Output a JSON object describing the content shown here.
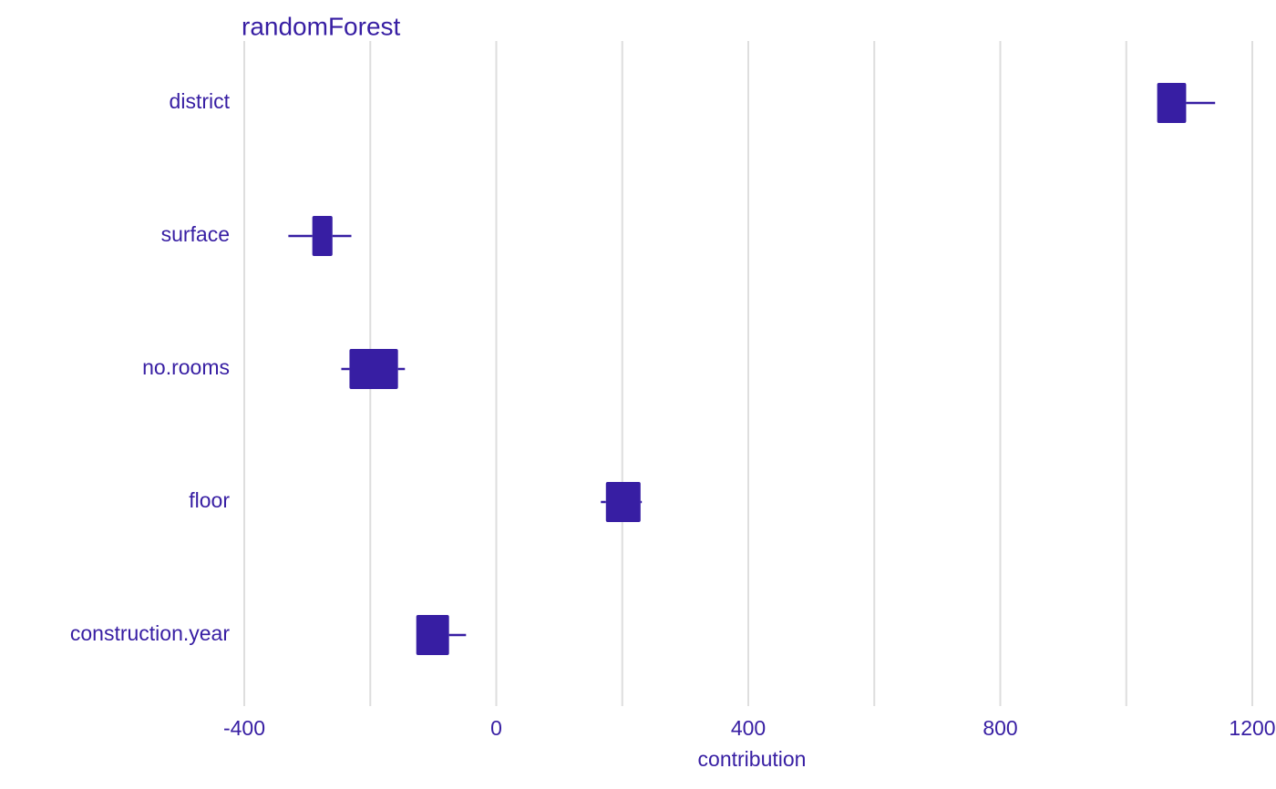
{
  "chart_data": {
    "type": "boxplot",
    "title": "randomForest",
    "x_label": "contribution",
    "categories": [
      "district",
      "surface",
      "no.rooms",
      "floor",
      "construction.year"
    ],
    "min": [
      1049,
      -330,
      -246,
      166,
      -127
    ],
    "q1": [
      1049,
      -292,
      -233,
      174,
      -127
    ],
    "q3": [
      1095,
      -260,
      -156,
      229,
      -75
    ],
    "max": [
      1141,
      -230,
      -145,
      231,
      -48
    ],
    "color": "#371ea3",
    "xlim": [
      -400,
      1200
    ],
    "xticks": [
      -400,
      0,
      400,
      800,
      1200
    ],
    "xminor": [
      -200,
      200,
      600,
      1000
    ],
    "grid": true
  }
}
